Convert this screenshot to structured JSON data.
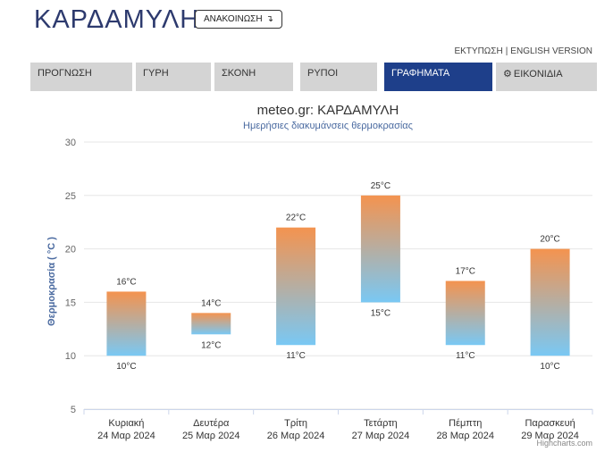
{
  "header": {
    "title": "ΚΑΡΔΑΜΥΛΗ",
    "announce_label": "ΑΝΑΚΟΙΝΩΣΗ",
    "announce_icon": "down-arrow-icon",
    "print_label": "ΕΚΤΥΠΩΣΗ",
    "separator": "|",
    "english_label": "ENGLISH VERSION"
  },
  "tabs": [
    {
      "label": "ΠΡΟΓΝΩΣΗ",
      "active": false
    },
    {
      "label": "ΓΥΡΗ",
      "active": false
    },
    {
      "label": "ΣΚΟΝΗ",
      "active": false
    },
    {
      "label": "ΡΥΠΟΙ",
      "active": false
    },
    {
      "label": "ΓΡΑΦΗΜΑΤΑ",
      "active": true
    },
    {
      "label": "ΕΙΚΟΝΙΔΙΑ",
      "active": false,
      "icon": "gear-icon"
    }
  ],
  "colors": {
    "active_tab": "#1e3f8a",
    "bar_top": "#f4934f",
    "bar_bottom": "#79c8f4"
  },
  "chart_data": {
    "type": "columnrange",
    "title": "meteo.gr: ΚΑΡΔΑΜΥΛΗ",
    "subtitle": "Ημερήσιες διακυμάνσεις θερμοκρασίας",
    "ylabel": "Θερμοκρασία ( °C )",
    "ylim": [
      5,
      30
    ],
    "yticks": [
      5,
      10,
      15,
      20,
      25,
      30
    ],
    "grid": true,
    "unit": "°C",
    "categories": [
      {
        "day": "Κυριακή",
        "date": "24 Μαρ 2024"
      },
      {
        "day": "Δευτέρα",
        "date": "25 Μαρ 2024"
      },
      {
        "day": "Τρίτη",
        "date": "26 Μαρ 2024"
      },
      {
        "day": "Τετάρτη",
        "date": "27 Μαρ 2024"
      },
      {
        "day": "Πέμπτη",
        "date": "28 Μαρ 2024"
      },
      {
        "day": "Παρασκευή",
        "date": "29 Μαρ 2024"
      }
    ],
    "low": [
      10,
      12,
      11,
      15,
      11,
      10
    ],
    "high": [
      16,
      14,
      22,
      25,
      17,
      20
    ]
  },
  "credit": "Highcharts.com"
}
